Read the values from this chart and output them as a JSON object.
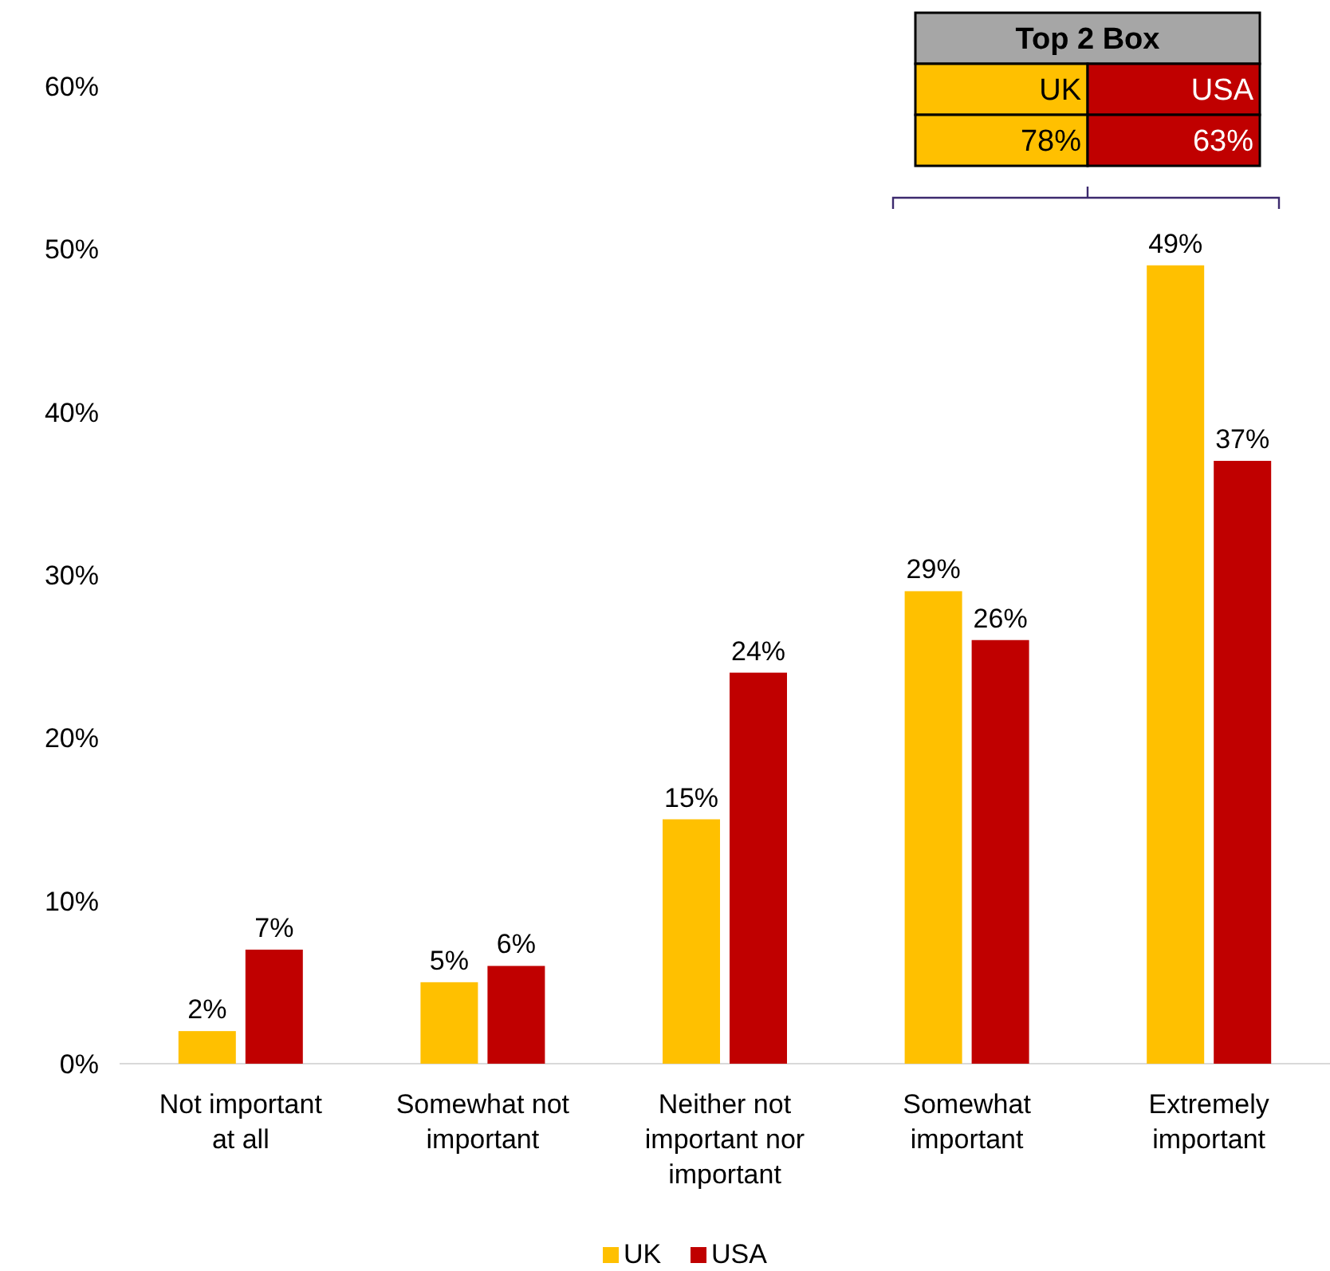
{
  "chart_data": {
    "type": "bar",
    "categories": [
      "Not important at all",
      "Somewhat not important",
      "Neither not important nor important",
      "Somewhat important",
      "Extremely important"
    ],
    "series": [
      {
        "name": "UK",
        "color": "#ffc000",
        "values": [
          2,
          5,
          15,
          29,
          49
        ],
        "value_labels": [
          "2%",
          "5%",
          "15%",
          "29%",
          "49%"
        ]
      },
      {
        "name": "USA",
        "color": "#c00000",
        "values": [
          7,
          6,
          24,
          26,
          37
        ],
        "value_labels": [
          "7%",
          "6%",
          "24%",
          "26%",
          "37%"
        ]
      }
    ],
    "ylim": [
      0,
      60
    ],
    "yticks": [
      {
        "value": 0,
        "label": "0%"
      },
      {
        "value": 10,
        "label": "10%"
      },
      {
        "value": 20,
        "label": "20%"
      },
      {
        "value": 30,
        "label": "30%"
      },
      {
        "value": 40,
        "label": "40%"
      },
      {
        "value": 50,
        "label": "50%"
      },
      {
        "value": 60,
        "label": "60%"
      }
    ],
    "legend": "bottom",
    "grid": false,
    "annotations": [
      "Top 2 Box",
      "UK",
      "USA",
      "78%",
      "63%"
    ]
  }
}
